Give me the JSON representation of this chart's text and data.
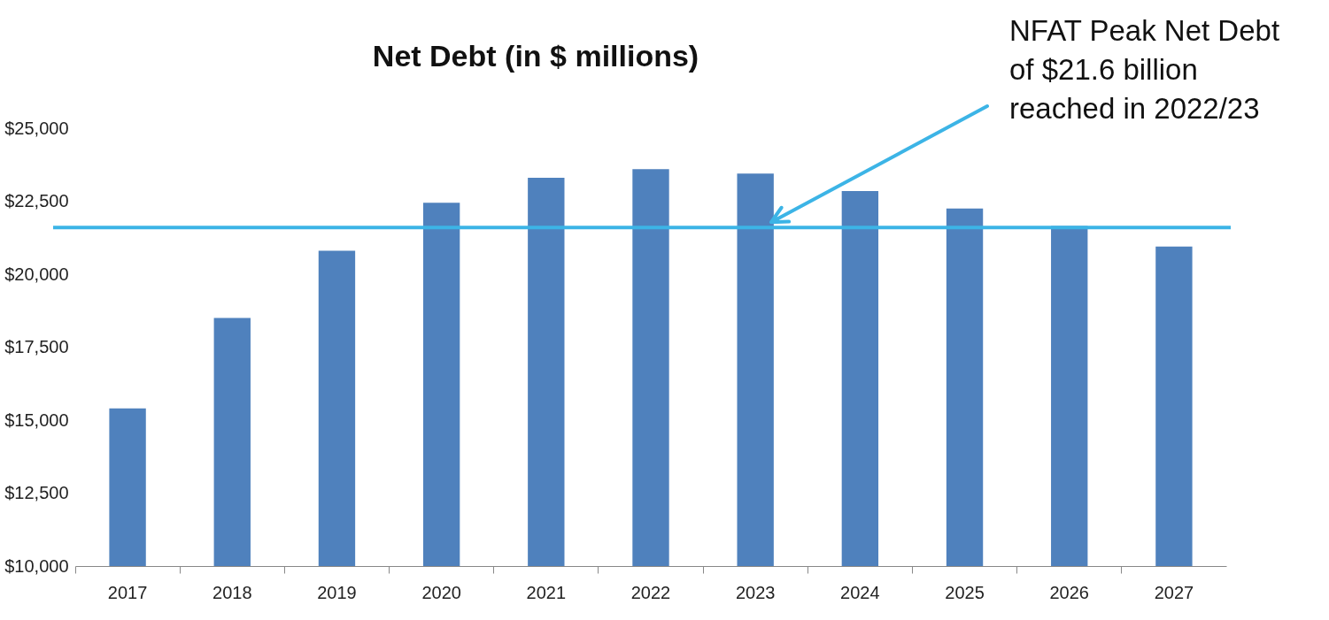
{
  "chart_data": {
    "type": "bar",
    "title": "Net Debt (in $ millions)",
    "categories": [
      "2017",
      "2018",
      "2019",
      "2020",
      "2021",
      "2022",
      "2023",
      "2024",
      "2025",
      "2026",
      "2027"
    ],
    "values": [
      15400,
      18500,
      20800,
      22450,
      23300,
      23600,
      23450,
      22850,
      22250,
      21650,
      20950
    ],
    "color": "#4f81bd",
    "ylim": [
      10000,
      25000
    ],
    "yticks": [
      {
        "value": 10000,
        "label": "$10,000"
      },
      {
        "value": 12500,
        "label": "$12,500"
      },
      {
        "value": 15000,
        "label": "$15,000"
      },
      {
        "value": 17500,
        "label": "$17,500"
      },
      {
        "value": 20000,
        "label": "$20,000"
      },
      {
        "value": 22500,
        "label": "$22,500"
      },
      {
        "value": 25000,
        "label": "$25,000"
      }
    ],
    "grid": false,
    "ref_lines": [
      {
        "axis": "y",
        "value": 21600,
        "color": "#3cb4e6"
      }
    ],
    "annotations": [
      "NFAT Peak Net Debt\nof $21.6 billion\nreached in 2022/23"
    ]
  }
}
